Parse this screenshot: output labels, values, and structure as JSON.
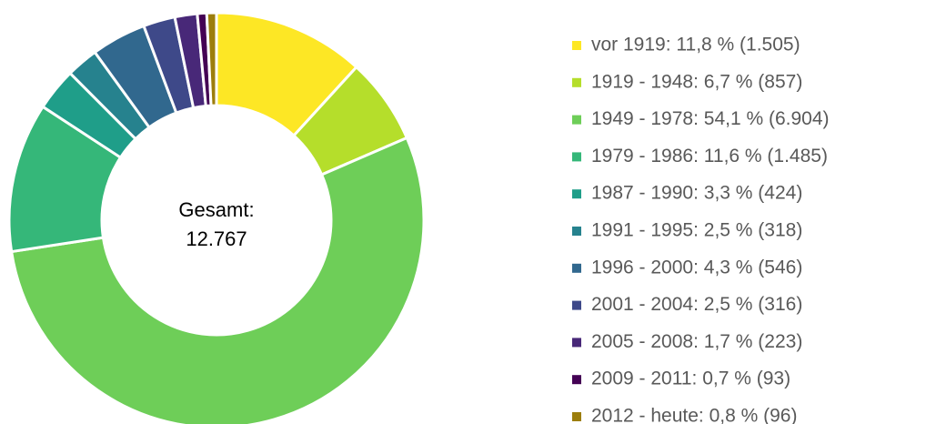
{
  "chart_data": {
    "type": "donut",
    "center_label": [
      "Gesamt:",
      "12.767"
    ],
    "labels": [
      "vor 1919: 11,8 % (1.505)",
      "1919 - 1948: 6,7 % (857)",
      "1949 - 1978: 54,1 % (6.904)",
      "1979 - 1986: 11,6 % (1.485)",
      "1987 - 1990: 3,3 % (424)",
      "1991 - 1995: 2,5 % (318)",
      "1996 - 2000: 4,3 % (546)",
      "2001 - 2004: 2,5 % (316)",
      "2005 - 2008: 1,7 % (223)",
      "2009 - 2011: 0,7 % (93)",
      "2012 - heute: 0,8 % (96)"
    ],
    "values": [
      1505,
      857,
      6904,
      1485,
      424,
      318,
      546,
      316,
      223,
      93,
      96
    ],
    "colors": [
      "#fde725",
      "#b5de2b",
      "#6ece58",
      "#35b779",
      "#1f9e89",
      "#26828e",
      "#31688e",
      "#3e4989",
      "#482878",
      "#440154",
      "#9c7e0c"
    ]
  }
}
